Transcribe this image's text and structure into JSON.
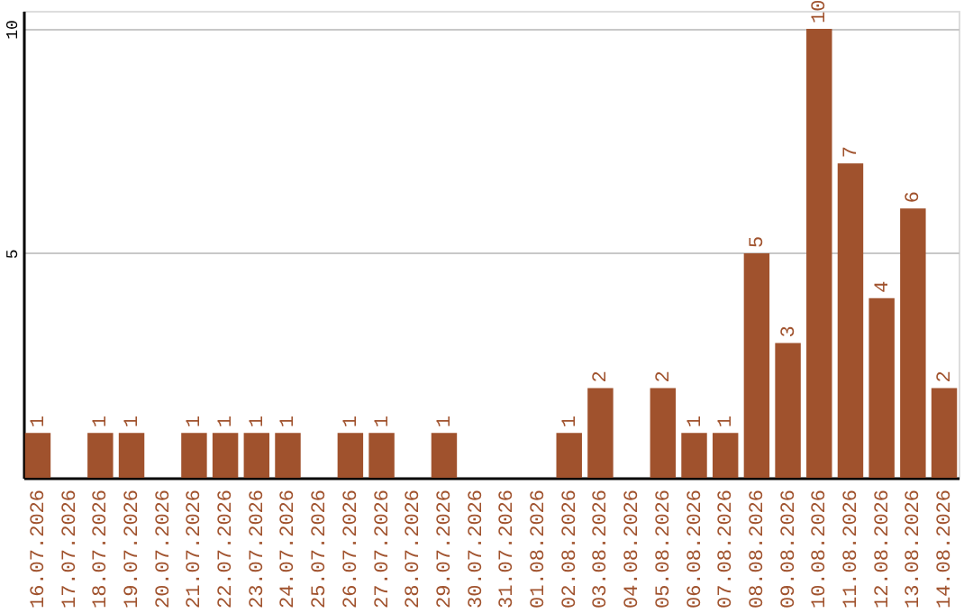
{
  "chart_data": {
    "type": "bar",
    "categories": [
      "16.07.2026",
      "17.07.2026",
      "18.07.2026",
      "19.07.2026",
      "20.07.2026",
      "21.07.2026",
      "22.07.2026",
      "23.07.2026",
      "24.07.2026",
      "25.07.2026",
      "26.07.2026",
      "27.07.2026",
      "28.07.2026",
      "29.07.2026",
      "30.07.2026",
      "31.07.2026",
      "01.08.2026",
      "02.08.2026",
      "03.08.2026",
      "04.08.2026",
      "05.08.2026",
      "06.08.2026",
      "07.08.2026",
      "08.08.2026",
      "09.08.2026",
      "10.08.2026",
      "11.08.2026",
      "12.08.2026",
      "13.08.2026",
      "14.08.2026"
    ],
    "values": [
      1,
      null,
      1,
      1,
      null,
      1,
      1,
      1,
      1,
      null,
      1,
      1,
      null,
      1,
      null,
      null,
      null,
      1,
      2,
      null,
      2,
      1,
      1,
      5,
      3,
      10,
      7,
      4,
      6,
      2
    ],
    "color": "#a0522d",
    "ylim": [
      0,
      10.4
    ],
    "yticks": [
      5,
      10
    ],
    "grid": "y",
    "data_labels": true
  }
}
